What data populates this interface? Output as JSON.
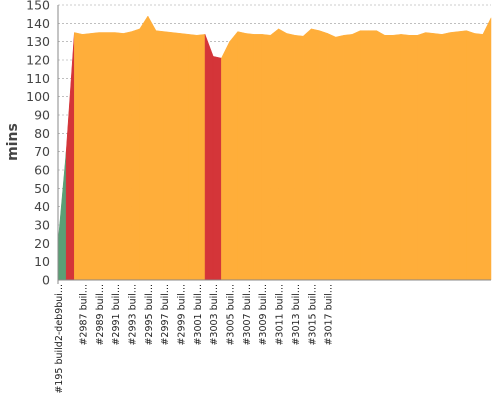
{
  "chart_data": {
    "type": "area",
    "title": "",
    "xlabel": "",
    "ylabel": "mins",
    "ylim": [
      0,
      150
    ],
    "y_ticks": [
      0,
      10,
      20,
      30,
      40,
      50,
      60,
      70,
      80,
      90,
      100,
      110,
      120,
      130,
      140,
      150
    ],
    "grid": true,
    "legend": "none",
    "x_tick_labels": [
      "#195 build2-deb9bui...",
      "#2987 buil...",
      "#2989 buil...",
      "#2991 buil...",
      "#2993 buil...",
      "#2995 buil...",
      "#2997 buil...",
      "#2999 buil...",
      "#3001 buil...",
      "#3003 buil...",
      "#3005 buil...",
      "#3007 buil...",
      "#3009 buil...",
      "#3011 buil...",
      "#3013 buil...",
      "#3015 buil...",
      "#3017 buil..."
    ],
    "x_tick_positions": [
      0,
      3,
      5,
      7,
      9,
      11,
      13,
      15,
      17,
      19,
      21,
      23,
      25,
      27,
      29,
      31,
      33
    ],
    "values": [
      20,
      70,
      135,
      134,
      134.5,
      135,
      135,
      135,
      134.5,
      135.5,
      137,
      144,
      136,
      135.5,
      135,
      134.5,
      134,
      133.5,
      134,
      122,
      121,
      130,
      135.5,
      134.5,
      134,
      134,
      133.5,
      137,
      134.5,
      133.5,
      133,
      137,
      136,
      134.5,
      132.5,
      133.5,
      134,
      136,
      136,
      136,
      133.5,
      133.5,
      134,
      133.5,
      133.5,
      135,
      134.5,
      134,
      135,
      135.5,
      136,
      134.5,
      134,
      143
    ],
    "status": [
      "success",
      "success",
      "failure",
      "unstable",
      "unstable",
      "unstable",
      "unstable",
      "unstable",
      "unstable",
      "unstable",
      "unstable",
      "unstable",
      "unstable",
      "unstable",
      "unstable",
      "unstable",
      "unstable",
      "unstable",
      "unstable",
      "failure",
      "failure",
      "unstable",
      "unstable",
      "unstable",
      "unstable",
      "unstable",
      "unstable",
      "unstable",
      "unstable",
      "unstable",
      "unstable",
      "unstable",
      "unstable",
      "unstable",
      "unstable",
      "unstable",
      "unstable",
      "unstable",
      "unstable",
      "unstable",
      "unstable",
      "unstable",
      "unstable",
      "unstable",
      "unstable",
      "unstable",
      "unstable",
      "unstable",
      "unstable",
      "unstable",
      "unstable",
      "unstable",
      "unstable",
      "unstable"
    ],
    "colors": {
      "success": "#5b9f76",
      "failure": "#d43539",
      "unstable": "#ffae3a",
      "grid": "#999999",
      "axis": "#888888"
    }
  }
}
